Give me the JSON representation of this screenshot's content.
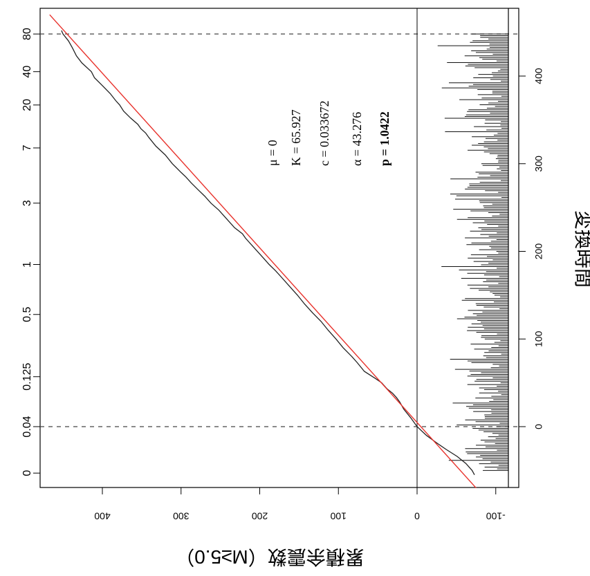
{
  "chart_data": {
    "type": "line",
    "title": "",
    "xlabel": "累積余震数（M≥5.0）",
    "ylabel": "変換時間",
    "right_tick_labels": [
      "0",
      "0.04",
      "0.125",
      "0.5",
      "1",
      "3",
      "7",
      "20",
      "40",
      "80"
    ],
    "right_tick_positions": [
      0,
      0.04,
      0.125,
      0.5,
      1,
      3,
      7,
      20,
      40,
      80
    ],
    "transformed_time_for_labels": [
      -53,
      0,
      57,
      128,
      185,
      255,
      318,
      367,
      405,
      448
    ],
    "transformed_time_ticks": [
      0,
      100,
      200,
      300,
      400
    ],
    "count_ticks": [
      400,
      300,
      200,
      100,
      0,
      -100
    ],
    "xlim": [
      -70,
      470
    ],
    "ylim": [
      -115,
      475
    ],
    "reference_lines": {
      "time_zero": 0,
      "time_80": 448
    },
    "annotation_params": {
      "mu": "μ = 0",
      "K": "K = 65.927",
      "c": "c = 0.033672",
      "alpha": "α = 43.276",
      "p": "p = 1.0422"
    },
    "series": [
      {
        "name": "",
        "color": "#222222",
        "points": [
          [
            -55,
            -73
          ],
          [
            -50,
            -70
          ],
          [
            -42,
            -62
          ],
          [
            -34,
            -51
          ],
          [
            -26,
            -37
          ],
          [
            -18,
            -24
          ],
          [
            -10,
            -12
          ],
          [
            0,
            0
          ],
          [
            10,
            8
          ],
          [
            20,
            17
          ],
          [
            28,
            22
          ],
          [
            33,
            26
          ],
          [
            38,
            31
          ],
          [
            43,
            38
          ],
          [
            50,
            45
          ],
          [
            55,
            53
          ],
          [
            63,
            67
          ],
          [
            73,
            76
          ],
          [
            80,
            83
          ],
          [
            90,
            94
          ],
          [
            100,
            103
          ],
          [
            110,
            113
          ],
          [
            120,
            122
          ],
          [
            130,
            133
          ],
          [
            140,
            143
          ],
          [
            150,
            152
          ],
          [
            160,
            162
          ],
          [
            170,
            172
          ],
          [
            178,
            180
          ],
          [
            185,
            188
          ],
          [
            195,
            198
          ],
          [
            205,
            208
          ],
          [
            215,
            218
          ],
          [
            220,
            222
          ],
          [
            227,
            232
          ],
          [
            237,
            242
          ],
          [
            247,
            252
          ],
          [
            255,
            262
          ],
          [
            263,
            270
          ],
          [
            270,
            278
          ],
          [
            278,
            287
          ],
          [
            285,
            294
          ],
          [
            290,
            300
          ],
          [
            300,
            311
          ],
          [
            310,
            320
          ],
          [
            320,
            332
          ],
          [
            330,
            341
          ],
          [
            335,
            345
          ],
          [
            340,
            351
          ],
          [
            345,
            355
          ],
          [
            352,
            364
          ],
          [
            360,
            373
          ],
          [
            367,
            378
          ],
          [
            372,
            383
          ],
          [
            380,
            390
          ],
          [
            390,
            401
          ],
          [
            398,
            410
          ],
          [
            405,
            414
          ],
          [
            415,
            426
          ],
          [
            423,
            433
          ],
          [
            432,
            438
          ],
          [
            440,
            443
          ],
          [
            448,
            450
          ],
          [
            452,
            452
          ]
        ]
      },
      {
        "name": "",
        "color": "#e8322c",
        "points": [
          [
            -70,
            -75
          ],
          [
            470,
            467
          ]
        ]
      }
    ]
  }
}
